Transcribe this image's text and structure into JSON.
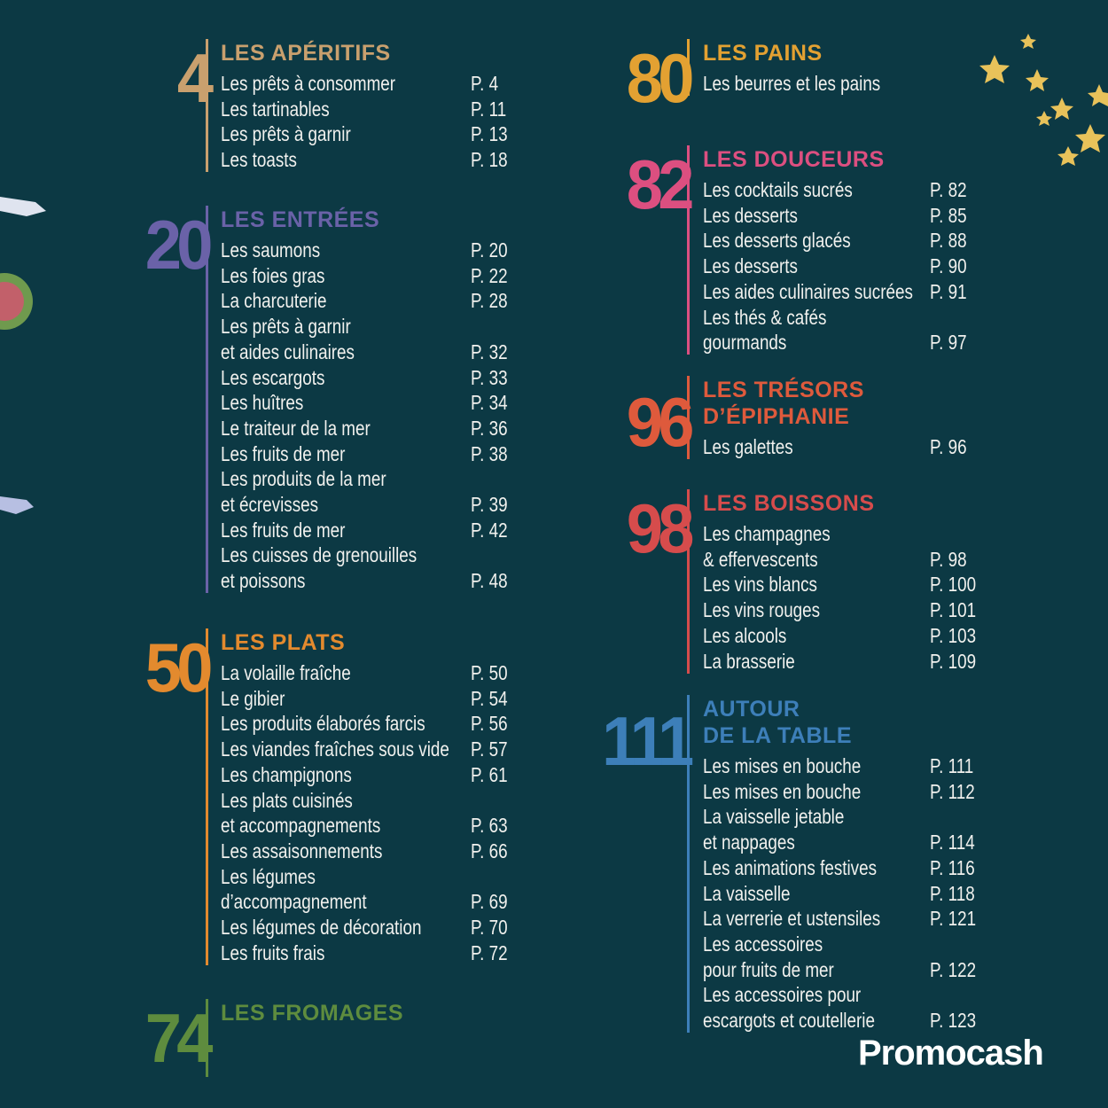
{
  "sections": [
    {
      "number": "4",
      "title": [
        "LES APÉRITIFS"
      ],
      "color": "#c9a06e",
      "items": [
        {
          "lines": [
            "Les prêts à consommer"
          ],
          "page": "P. 4"
        },
        {
          "lines": [
            "Les tartinables"
          ],
          "page": "P. 11"
        },
        {
          "lines": [
            "Les prêts à garnir"
          ],
          "page": "P. 13"
        },
        {
          "lines": [
            "Les toasts"
          ],
          "page": "P. 18"
        }
      ]
    },
    {
      "number": "20",
      "title": [
        "LES ENTRÉES"
      ],
      "color": "#6a62a8",
      "items": [
        {
          "lines": [
            "Les saumons"
          ],
          "page": "P. 20"
        },
        {
          "lines": [
            "Les foies gras"
          ],
          "page": "P. 22"
        },
        {
          "lines": [
            "La charcuterie"
          ],
          "page": "P. 28"
        },
        {
          "lines": [
            "Les prêts à garnir",
            "et aides culinaires"
          ],
          "page": "P. 32"
        },
        {
          "lines": [
            "Les escargots"
          ],
          "page": "P. 33"
        },
        {
          "lines": [
            "Les huîtres"
          ],
          "page": "P. 34"
        },
        {
          "lines": [
            "Le traiteur de la mer"
          ],
          "page": "P. 36"
        },
        {
          "lines": [
            "Les fruits de mer"
          ],
          "page": "P. 38"
        },
        {
          "lines": [
            "Les produits de la mer",
            "et écrevisses"
          ],
          "page": "P. 39"
        },
        {
          "lines": [
            "Les fruits de mer"
          ],
          "page": "P. 42"
        },
        {
          "lines": [
            "Les cuisses de grenouilles",
            "et poissons"
          ],
          "page": "P. 48"
        }
      ]
    },
    {
      "number": "50",
      "title": [
        "LES PLATS"
      ],
      "color": "#e38a2e",
      "items": [
        {
          "lines": [
            "La volaille fraîche"
          ],
          "page": "P. 50"
        },
        {
          "lines": [
            "Le gibier"
          ],
          "page": "P. 54"
        },
        {
          "lines": [
            "Les produits élaborés farcis"
          ],
          "page": "P. 56"
        },
        {
          "lines": [
            "Les viandes fraîches sous vide"
          ],
          "page": "P. 57"
        },
        {
          "lines": [
            "Les champignons"
          ],
          "page": "P. 61"
        },
        {
          "lines": [
            "Les plats cuisinés",
            "et accompagnements"
          ],
          "page": "P. 63"
        },
        {
          "lines": [
            "Les assaisonnements"
          ],
          "page": "P. 66"
        },
        {
          "lines": [
            "Les légumes",
            "d’accompagnement"
          ],
          "page": "P. 69"
        },
        {
          "lines": [
            "Les légumes de décoration"
          ],
          "page": "P. 70"
        },
        {
          "lines": [
            "Les fruits frais"
          ],
          "page": "P. 72"
        }
      ]
    },
    {
      "number": "74",
      "title": [
        "LES FROMAGES"
      ],
      "color": "#5e8c3e",
      "items": []
    },
    {
      "number": "80",
      "title": [
        "LES PAINS"
      ],
      "color": "#e3a132",
      "items": [
        {
          "lines": [
            "Les beurres et les pains"
          ]
        }
      ]
    },
    {
      "number": "82",
      "title": [
        "LES DOUCEURS"
      ],
      "color": "#dc4f80",
      "items": [
        {
          "lines": [
            "Les cocktails sucrés"
          ],
          "page": "P. 82"
        },
        {
          "lines": [
            "Les desserts"
          ],
          "page": "P. 85"
        },
        {
          "lines": [
            "Les desserts glacés"
          ],
          "page": "P. 88"
        },
        {
          "lines": [
            "Les desserts"
          ],
          "page": "P. 90"
        },
        {
          "lines": [
            "Les aides culinaires sucrées"
          ],
          "page": "P. 91"
        },
        {
          "lines": [
            "Les thés & cafés",
            "gourmands"
          ],
          "page": "P. 97"
        }
      ]
    },
    {
      "number": "96",
      "title": [
        "LES TRÉSORS",
        "D’ÉPIPHANIE"
      ],
      "color": "#de5a3c",
      "items": [
        {
          "lines": [
            "Les galettes"
          ],
          "page": "P. 96"
        }
      ]
    },
    {
      "number": "98",
      "title": [
        "LES BOISSONS"
      ],
      "color": "#d64c4c",
      "items": [
        {
          "lines": [
            "Les champagnes",
            "& effervescents"
          ],
          "page": "P. 98"
        },
        {
          "lines": [
            "Les vins blancs"
          ],
          "page": "P. 100"
        },
        {
          "lines": [
            "Les vins rouges"
          ],
          "page": "P. 101"
        },
        {
          "lines": [
            "Les alcools"
          ],
          "page": "P. 103"
        },
        {
          "lines": [
            "La brasserie"
          ],
          "page": "P. 109"
        }
      ]
    },
    {
      "number": "111",
      "title": [
        "AUTOUR",
        "DE LA TABLE"
      ],
      "color": "#3d7fb9",
      "items": [
        {
          "lines": [
            "Les mises en bouche"
          ],
          "page": "P. 111"
        },
        {
          "lines": [
            "Les mises en bouche"
          ],
          "page": "P. 112"
        },
        {
          "lines": [
            "La vaisselle jetable",
            "et nappages"
          ],
          "page": "P. 114"
        },
        {
          "lines": [
            "Les animations festives"
          ],
          "page": "P. 116"
        },
        {
          "lines": [
            "La vaisselle"
          ],
          "page": "P. 118"
        },
        {
          "lines": [
            "La verrerie et ustensiles"
          ],
          "page": "P. 121"
        },
        {
          "lines": [
            "Les accessoires",
            "pour fruits de mer"
          ],
          "page": "P. 122"
        },
        {
          "lines": [
            "Les accessoires pour",
            "escargots et coutellerie"
          ],
          "page": "P. 123"
        }
      ]
    }
  ],
  "logo": "Promocash"
}
